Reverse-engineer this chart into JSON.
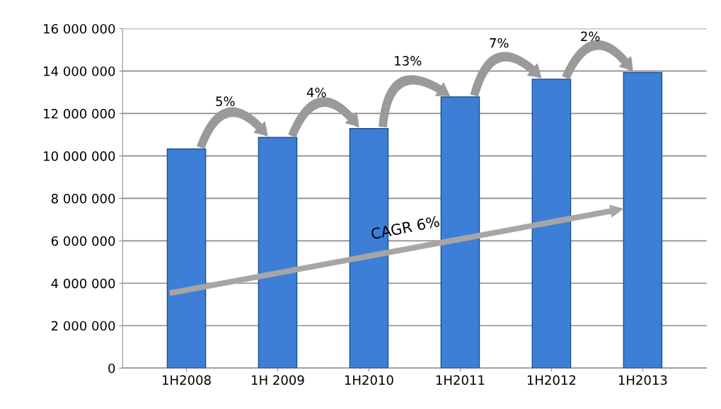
{
  "chart_data": {
    "type": "bar",
    "categories": [
      "1H2008",
      "1H 2009",
      "1H2010",
      "1H2011",
      "1H2012",
      "1H2013"
    ],
    "values": [
      10330000,
      10870000,
      11290000,
      12780000,
      13620000,
      13930000
    ],
    "color": "#3d7fd6",
    "ylim": [
      0,
      16000000
    ],
    "yticks": [
      {
        "value": 0,
        "label": "0"
      },
      {
        "value": 2000000,
        "label": "2 000 000"
      },
      {
        "value": 4000000,
        "label": "4 000 000"
      },
      {
        "value": 6000000,
        "label": "6 000 000"
      },
      {
        "value": 8000000,
        "label": "8 000 000"
      },
      {
        "value": 10000000,
        "label": "10 000 000"
      },
      {
        "value": 12000000,
        "label": "12 000 000"
      },
      {
        "value": 14000000,
        "label": "14 000 000"
      },
      {
        "value": 16000000,
        "label": "16 000 000"
      }
    ],
    "grid": "y",
    "annotations": [
      "5%",
      "4%",
      "13%",
      "7%",
      "2%",
      "CAGR 6%"
    ]
  }
}
